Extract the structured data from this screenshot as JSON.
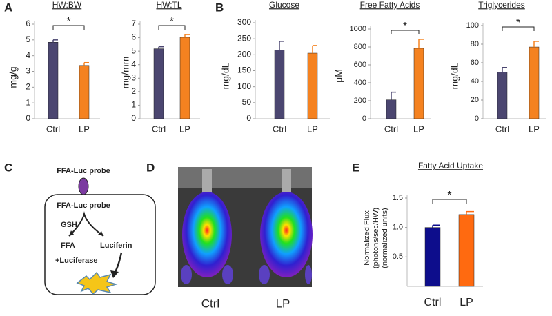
{
  "panel_labels": [
    "A",
    "B",
    "C",
    "D",
    "E"
  ],
  "chart_data": [
    {
      "type": "bar",
      "title": "HW:BW",
      "y_label": [
        "mg/g"
      ],
      "categories": [
        "Ctrl",
        "LP"
      ],
      "values": [
        4.85,
        3.38
      ],
      "errors": [
        0.15,
        0.18
      ],
      "colors": [
        "#4b4670",
        "#f58220"
      ],
      "ylim": [
        0,
        6
      ],
      "yticks": [
        0,
        1,
        2,
        3,
        4,
        5,
        6
      ],
      "annotation": "*"
    },
    {
      "type": "bar",
      "title": "HW:TL",
      "y_label": [
        "mg/mm"
      ],
      "categories": [
        "Ctrl",
        "LP"
      ],
      "values": [
        5.18,
        6.03
      ],
      "errors": [
        0.15,
        0.2
      ],
      "colors": [
        "#4b4670",
        "#f58220"
      ],
      "ylim": [
        0,
        7
      ],
      "yticks": [
        0,
        1,
        2,
        3,
        4,
        5,
        6,
        7
      ],
      "annotation": "*"
    },
    {
      "type": "bar",
      "title": "Glucose",
      "y_label": [
        "mg/dL"
      ],
      "categories": [
        "Ctrl",
        "LP"
      ],
      "values": [
        215,
        205
      ],
      "errors": [
        27,
        24
      ],
      "colors": [
        "#4b4670",
        "#f58220"
      ],
      "ylim": [
        0,
        300
      ],
      "yticks": [
        0,
        50,
        100,
        150,
        200,
        250,
        300
      ]
    },
    {
      "type": "bar",
      "title": "Free Fatty Acids",
      "y_label": [
        "μM"
      ],
      "categories": [
        "Ctrl",
        "LP"
      ],
      "values": [
        210,
        785
      ],
      "errors": [
        85,
        100
      ],
      "colors": [
        "#4b4670",
        "#f58220"
      ],
      "ylim": [
        0,
        1000
      ],
      "yticks": [
        0,
        200,
        400,
        600,
        800,
        1000
      ],
      "annotation": "*"
    },
    {
      "type": "bar",
      "title": "Triglycerides",
      "y_label": [
        "mg/dL"
      ],
      "categories": [
        "Ctrl",
        "LP"
      ],
      "values": [
        50,
        77
      ],
      "errors": [
        5,
        6
      ],
      "colors": [
        "#4b4670",
        "#f58220"
      ],
      "ylim": [
        0,
        100
      ],
      "yticks": [
        0,
        20,
        40,
        60,
        80,
        100
      ],
      "annotation": "*"
    },
    {
      "type": "bar",
      "title": "Fatty Acid Uptake",
      "y_label": [
        "Normalized Flux",
        "(photons/sec/HW)",
        "(normalized units)"
      ],
      "categories": [
        "Ctrl",
        "LP"
      ],
      "values": [
        1.0,
        1.22
      ],
      "errors": [
        0.04,
        0.05
      ],
      "colors": [
        "#0d0d8c",
        "#ff6a10"
      ],
      "ylim": [
        0,
        1.5
      ],
      "yticks": [
        0.5,
        {
          "value": 1,
          "label": "1.0"
        },
        1.5
      ],
      "annotation": "*"
    }
  ],
  "diagram": {
    "probe_outside": "FFA-Luc probe",
    "probe_inside": "FFA-Luc probe",
    "gsh": "GSH",
    "ffa": "FFA",
    "luciferase": "+Luciferase",
    "luciferin": "Luciferin"
  },
  "image": {
    "labels": [
      "Ctrl",
      "LP"
    ]
  }
}
